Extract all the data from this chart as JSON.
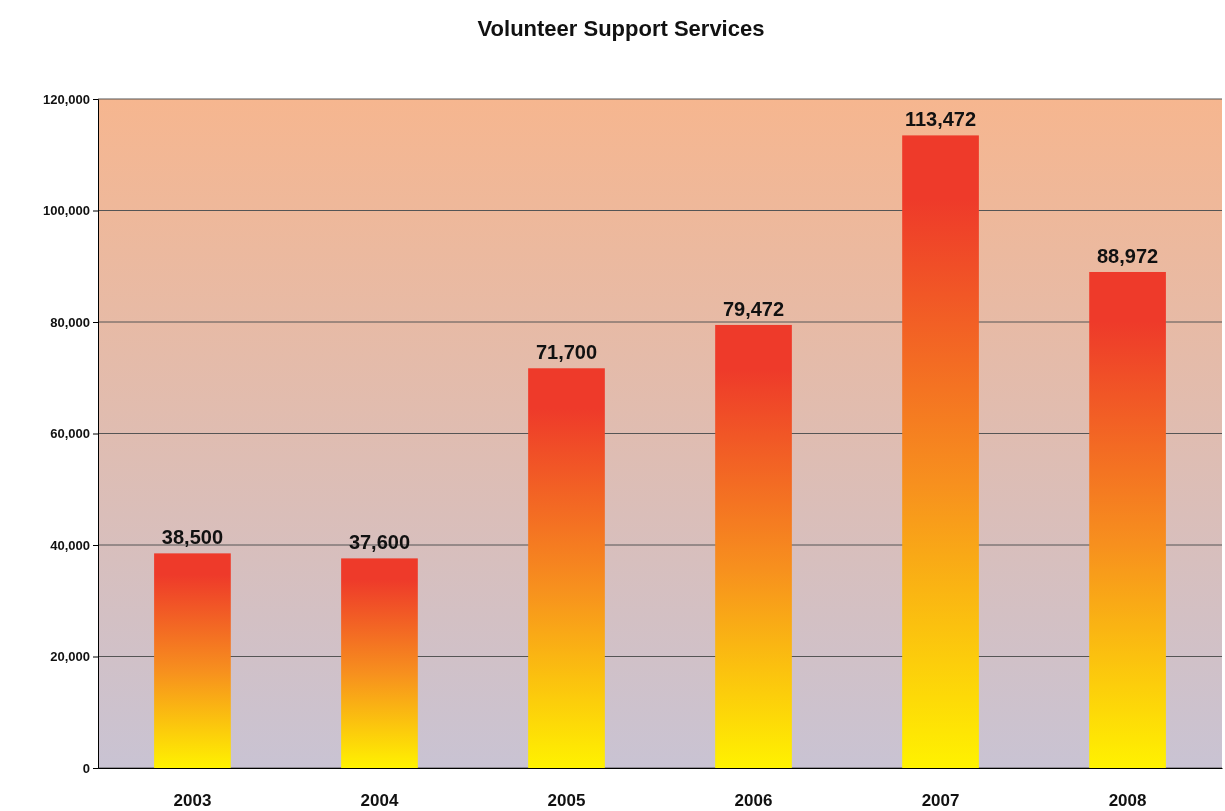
{
  "chart_data": {
    "type": "bar",
    "title": "Volunteer Support Services",
    "categories": [
      "2003",
      "2004",
      "2005",
      "2006",
      "2007",
      "2008"
    ],
    "values": [
      38500,
      37600,
      71700,
      79472,
      113472,
      88972
    ],
    "color": "#ee3a2a",
    "ylim": [
      0,
      120000
    ],
    "yticks": [
      {
        "value": 0,
        "label": "0"
      },
      {
        "value": 20000,
        "label": "20,000"
      },
      {
        "value": 40000,
        "label": "40,000"
      },
      {
        "value": 60000,
        "label": "60,000"
      },
      {
        "value": 80000,
        "label": "80,000"
      },
      {
        "value": 100000,
        "label": "100,000"
      },
      {
        "value": 120000,
        "label": "120,000"
      }
    ],
    "value_labels": [
      "38,500",
      "37,600",
      "71,700",
      "79,472",
      "113,472",
      "88,972"
    ],
    "grid": "y"
  }
}
